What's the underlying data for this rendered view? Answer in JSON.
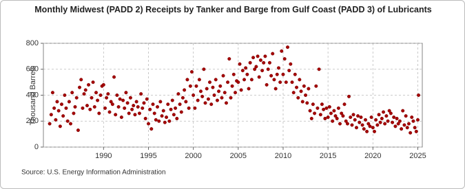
{
  "chart_data": {
    "type": "scatter",
    "title": "Monthly Midwest (PADD 2) Receipts by Tanker and Barge from Gulf Coast (PADD 3) of Lubricants",
    "y_label": "Thousand Barrels",
    "source": "Source: U.S. Energy Information Administration",
    "xlim": [
      1983.3,
      2025.5
    ],
    "xticks": [
      1990,
      1995,
      2000,
      2005,
      2010,
      2015,
      2020,
      2025
    ],
    "ylim": [
      0,
      800
    ],
    "yticks": [
      0,
      200,
      400,
      600,
      800
    ],
    "grid": true,
    "series": [
      {
        "name": "Receipts",
        "color": "#a50000",
        "x": [
          1984,
          1984.17,
          1984.33,
          1984.5,
          1984.67,
          1984.83,
          1985,
          1985.17,
          1985.33,
          1985.5,
          1985.67,
          1985.83,
          1986,
          1986.17,
          1986.33,
          1986.5,
          1986.67,
          1986.83,
          1987,
          1987.17,
          1987.33,
          1987.5,
          1987.67,
          1987.83,
          1988,
          1988.17,
          1988.33,
          1988.5,
          1988.67,
          1988.83,
          1989,
          1989.17,
          1989.33,
          1989.5,
          1989.67,
          1989.83,
          1990,
          1990.17,
          1990.33,
          1990.5,
          1990.67,
          1990.83,
          1991,
          1991.17,
          1991.33,
          1991.5,
          1991.67,
          1991.83,
          1992,
          1992.17,
          1992.33,
          1992.5,
          1992.67,
          1992.83,
          1993,
          1993.17,
          1993.33,
          1993.5,
          1993.67,
          1993.83,
          1994,
          1994.17,
          1994.33,
          1994.5,
          1994.67,
          1994.83,
          1995,
          1995.17,
          1995.33,
          1995.5,
          1995.67,
          1995.83,
          1996,
          1996.17,
          1996.33,
          1996.5,
          1996.67,
          1996.83,
          1997,
          1997.17,
          1997.33,
          1997.5,
          1997.67,
          1997.83,
          1998,
          1998.17,
          1998.33,
          1998.5,
          1998.67,
          1998.83,
          1999,
          1999.17,
          1999.33,
          1999.5,
          1999.67,
          1999.83,
          2000,
          2000.17,
          2000.33,
          2000.5,
          2000.67,
          2000.83,
          2001,
          2001.17,
          2001.33,
          2001.5,
          2001.67,
          2001.83,
          2002,
          2002.17,
          2002.33,
          2002.5,
          2002.67,
          2002.83,
          2003,
          2003.17,
          2003.33,
          2003.5,
          2003.67,
          2003.83,
          2004,
          2004.17,
          2004.33,
          2004.5,
          2004.67,
          2004.83,
          2005,
          2005.17,
          2005.33,
          2005.5,
          2005.67,
          2005.83,
          2006,
          2006.17,
          2006.33,
          2006.5,
          2006.67,
          2006.83,
          2007,
          2007.17,
          2007.33,
          2007.5,
          2007.67,
          2007.83,
          2008,
          2008.17,
          2008.33,
          2008.5,
          2008.67,
          2008.83,
          2009,
          2009.17,
          2009.33,
          2009.5,
          2009.67,
          2009.83,
          2010,
          2010.17,
          2010.33,
          2010.5,
          2010.67,
          2010.83,
          2011,
          2011.17,
          2011.33,
          2011.5,
          2011.67,
          2011.83,
          2012,
          2012.17,
          2012.33,
          2012.5,
          2012.67,
          2012.83,
          2013,
          2013.17,
          2013.33,
          2013.5,
          2013.67,
          2013.83,
          2014,
          2014.17,
          2014.33,
          2014.5,
          2014.67,
          2014.83,
          2015,
          2015.17,
          2015.33,
          2015.5,
          2015.67,
          2015.83,
          2016,
          2016.17,
          2016.33,
          2016.5,
          2016.67,
          2016.83,
          2017,
          2017.17,
          2017.33,
          2017.5,
          2017.67,
          2017.83,
          2018,
          2018.17,
          2018.33,
          2018.5,
          2018.67,
          2018.83,
          2019,
          2019.17,
          2019.33,
          2019.5,
          2019.67,
          2019.83,
          2020,
          2020.17,
          2020.33,
          2020.5,
          2020.67,
          2020.83,
          2021,
          2021.17,
          2021.33,
          2021.5,
          2021.67,
          2021.83,
          2022,
          2022.17,
          2022.33,
          2022.5,
          2022.67,
          2022.83,
          2023,
          2023.17,
          2023.33,
          2023.5,
          2023.67,
          2023.83,
          2024,
          2024.17,
          2024.33,
          2024.5,
          2024.67,
          2024.83,
          2025,
          2025.08
        ],
        "values": [
          180,
          250,
          420,
          300,
          210,
          350,
          280,
          160,
          330,
          240,
          400,
          300,
          200,
          350,
          180,
          420,
          260,
          310,
          380,
          130,
          460,
          520,
          300,
          410,
          440,
          320,
          480,
          290,
          380,
          500,
          310,
          420,
          360,
          260,
          400,
          470,
          480,
          300,
          380,
          410,
          270,
          350,
          330,
          540,
          250,
          400,
          310,
          370,
          230,
          360,
          300,
          420,
          340,
          260,
          380,
          290,
          320,
          250,
          350,
          310,
          260,
          410,
          300,
          340,
          220,
          370,
          180,
          290,
          140,
          330,
          260,
          210,
          310,
          200,
          350,
          240,
          280,
          190,
          230,
          330,
          200,
          290,
          360,
          250,
          300,
          220,
          410,
          330,
          270,
          380,
          440,
          350,
          520,
          300,
          470,
          580,
          400,
          300,
          470,
          360,
          520,
          430,
          390,
          600,
          340,
          450,
          370,
          500,
          330,
          460,
          400,
          520,
          360,
          430,
          470,
          380,
          550,
          420,
          340,
          500,
          680,
          380,
          470,
          560,
          420,
          510,
          500,
          640,
          440,
          590,
          520,
          610,
          560,
          450,
          650,
          520,
          690,
          600,
          620,
          700,
          540,
          670,
          590,
          650,
          700,
          480,
          600,
          650,
          550,
          720,
          520,
          450,
          560,
          610,
          500,
          740,
          560,
          680,
          500,
          770,
          590,
          640,
          500,
          420,
          560,
          460,
          380,
          520,
          430,
          350,
          470,
          400,
          340,
          450,
          280,
          220,
          330,
          260,
          470,
          300,
          600,
          250,
          330,
          290,
          220,
          300,
          230,
          310,
          260,
          200,
          280,
          240,
          220,
          300,
          180,
          260,
          240,
          330,
          200,
          180,
          390,
          230,
          170,
          250,
          210,
          150,
          240,
          190,
          230,
          170,
          140,
          210,
          120,
          180,
          160,
          230,
          150,
          120,
          210,
          170,
          250,
          190,
          220,
          270,
          180,
          240,
          200,
          280,
          260,
          190,
          230,
          160,
          220,
          180,
          200,
          140,
          280,
          170,
          240,
          150,
          180,
          110,
          230,
          200,
          150,
          120,
          210,
          400
        ]
      }
    ]
  }
}
